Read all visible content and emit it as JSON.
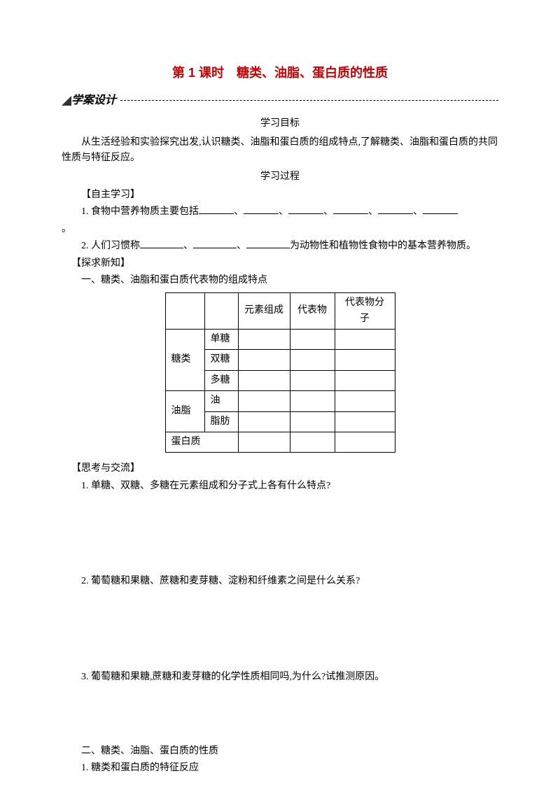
{
  "title": "第 1 课时　糖类、油脂、蛋白质的性质",
  "section_bar_label": "学案设计",
  "headings": {
    "objectives": "学习目标",
    "process": "学习过程"
  },
  "objective_text": "从生活经验和实验探究出发,认识糖类、油脂和蛋白质的组成特点,了解糖类、油脂和蛋白质的共同性质与特征反应。",
  "brackets": {
    "self_study": "【自主学习】",
    "explore": "【探求新知】",
    "discuss": "【思考与交流】"
  },
  "self_study": {
    "q1_prefix": "1. 食物中营养物质主要包括",
    "q1_suffix": "。",
    "q2_prefix": "2. 人们习惯称",
    "q2_suffix": "为动物性和植物性食物中的基本营养物质。"
  },
  "explore_heading": "一、糖类、油脂和蛋白质代表物的组成特点",
  "table": {
    "headers": {
      "col_a": "元素组成",
      "col_b": "代表物",
      "col_c": "代表物分子"
    },
    "rows": {
      "sugar": "糖类",
      "mono": "单糖",
      "di": "双糖",
      "poly": "多糖",
      "lipid": "油脂",
      "oil": "油",
      "fat": "脂肪",
      "protein": "蛋白质"
    }
  },
  "discuss": {
    "q1": "1. 单糖、双糖、多糖在元素组成和分子式上各有什么特点?",
    "q2": "2. 葡萄糖和果糖、蔗糖和麦芽糖、淀粉和纤维素之间是什么关系?",
    "q3": "3. 葡萄糖和果糖,蔗糖和麦芽糖的化学性质相同吗,为什么?试推测原因。"
  },
  "section2": {
    "heading": "二、糖类、油脂、蛋白质的性质",
    "sub1": "1. 糖类和蛋白质的特征反应"
  },
  "colors": {
    "title_color": "#cc0000",
    "text_color": "#000000",
    "background": "#ffffff"
  }
}
